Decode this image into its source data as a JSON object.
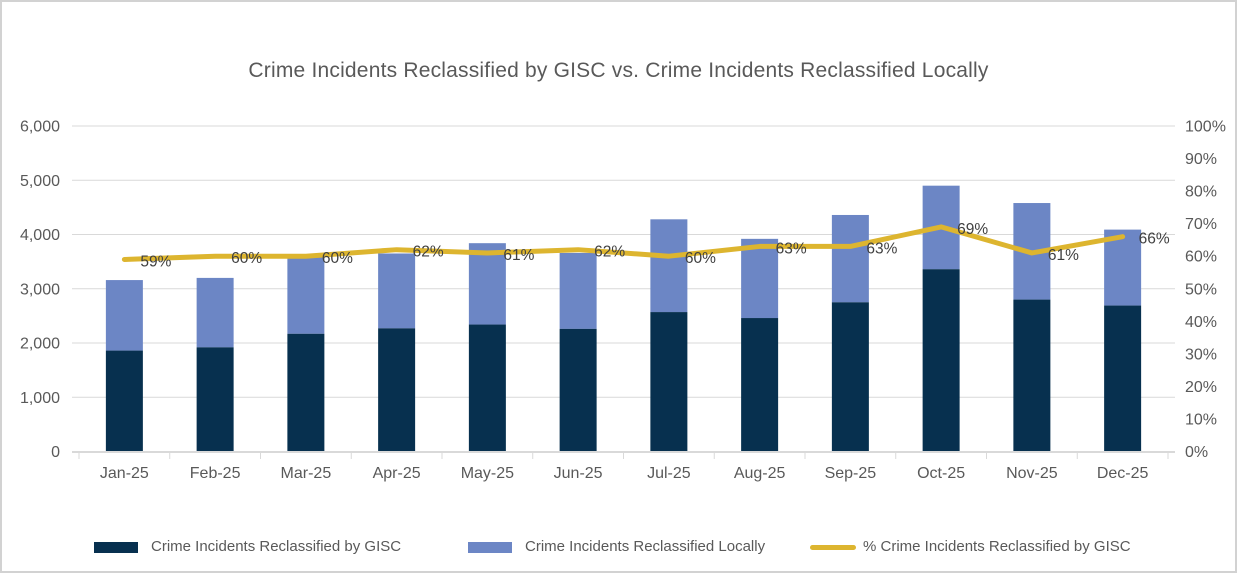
{
  "title": "Crime Incidents Reclassified by GISC vs. Crime Incidents Reclassified Locally",
  "colors": {
    "gisc_bar": "#07304F",
    "local_bar": "#6C86C5",
    "pct_line": "#DDB52F",
    "gridline": "#D9D9D9",
    "axis_label": "#595959",
    "data_label": "#404040",
    "title_text": "#595959",
    "legend_text": "#595959",
    "frame_border": "#D2D2D2",
    "background": "#FFFFFF"
  },
  "chart_data": {
    "type": "bar",
    "subtype": "stacked-bar-with-line",
    "title": "Crime Incidents Reclassified by GISC vs. Crime Incidents Reclassified Locally",
    "categories": [
      "Jan-25",
      "Feb-25",
      "Mar-25",
      "Apr-25",
      "May-25",
      "Jun-25",
      "Jul-25",
      "Aug-25",
      "Sep-25",
      "Oct-25",
      "Nov-25",
      "Dec-25"
    ],
    "series": [
      {
        "name": "Crime Incidents Reclassified by GISC",
        "type": "bar",
        "stacked": true,
        "values": [
          1860,
          1920,
          2170,
          2270,
          2340,
          2260,
          2570,
          2460,
          2750,
          3360,
          2800,
          2690
        ]
      },
      {
        "name": "Crime Incidents Reclassified Locally",
        "type": "bar",
        "stacked": true,
        "values": [
          1300,
          1280,
          1430,
          1380,
          1500,
          1400,
          1710,
          1460,
          1610,
          1540,
          1780,
          1400
        ]
      },
      {
        "name": "% Crime Incidents Reclassified by GISC",
        "type": "line",
        "axis": "right",
        "values": [
          59,
          60,
          60,
          62,
          61,
          62,
          60,
          63,
          63,
          69,
          61,
          66
        ],
        "point_labels": [
          "59%",
          "60%",
          "60%",
          "62%",
          "61%",
          "62%",
          "60%",
          "63%",
          "63%",
          "69%",
          "61%",
          "66%"
        ]
      }
    ],
    "left_axis": {
      "min": 0,
      "max": 6000,
      "step": 1000,
      "tick_labels": [
        "0",
        "1,000",
        "2,000",
        "3,000",
        "4,000",
        "5,000",
        "6,000"
      ]
    },
    "right_axis": {
      "min": 0,
      "max": 100,
      "step": 10,
      "tick_labels": [
        "0%",
        "10%",
        "20%",
        "30%",
        "40%",
        "50%",
        "60%",
        "70%",
        "80%",
        "90%",
        "100%"
      ]
    },
    "grid": "horizontal",
    "legend_position": "bottom",
    "xlabel": "",
    "ylabel": ""
  }
}
